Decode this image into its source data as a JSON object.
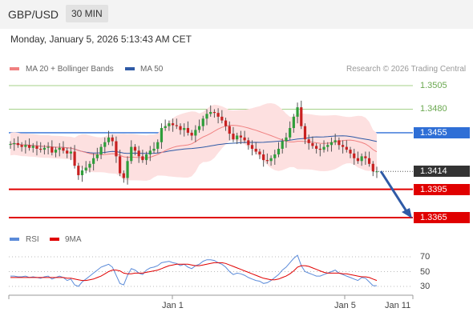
{
  "header": {
    "pair": "GBP/USD",
    "timeframe": "30 MIN"
  },
  "date_text": "Monday, January 5, 2026 5:13:43 AM CET",
  "legend": {
    "ma20": "MA 20 + Bollinger Bands",
    "ma50": "MA 50",
    "credit": "Research © 2026 Trading Central",
    "rsi": "RSI",
    "ma9": "9MA"
  },
  "colors": {
    "ma20": "#f08080",
    "ma50": "#2f5aa6",
    "band": "#fde0e0",
    "green": "#6aa84f",
    "red": "#e00000",
    "blue": "#2f6fd6",
    "rsi": "#5b8bd9"
  },
  "price_levels": [
    {
      "value": "1.3505",
      "kind": "resistance-green"
    },
    {
      "value": "1.3480",
      "kind": "resistance-green"
    },
    {
      "value": "1.3455",
      "kind": "pivot-blue"
    },
    {
      "value": "1.3414",
      "kind": "last-price"
    },
    {
      "value": "1.3395",
      "kind": "support-red"
    },
    {
      "value": "1.3365",
      "kind": "support-red"
    }
  ],
  "rsi_levels": [
    "70",
    "50",
    "30"
  ],
  "x_labels": [
    "Jan 1",
    "Jan 5",
    "Jan 11"
  ],
  "chart_data": {
    "type": "candlestick",
    "price_ylim": [
      1.335,
      1.3515
    ],
    "close": [
      1.3443,
      1.3444,
      1.3442,
      1.344,
      1.3442,
      1.3439,
      1.3441,
      1.3438,
      1.3437,
      1.3439,
      1.344,
      1.3434,
      1.3437,
      1.3439,
      1.3436,
      1.3433,
      1.3435,
      1.342,
      1.341,
      1.3415,
      1.3418,
      1.3422,
      1.3428,
      1.3432,
      1.344,
      1.3445,
      1.345,
      1.3446,
      1.343,
      1.3412,
      1.3407,
      1.3425,
      1.344,
      1.3436,
      1.343,
      1.3426,
      1.3432,
      1.3436,
      1.3438,
      1.3445,
      1.346,
      1.3462,
      1.3465,
      1.3463,
      1.3462,
      1.3458,
      1.346,
      1.3455,
      1.3452,
      1.3458,
      1.3462,
      1.347,
      1.3475,
      1.3477,
      1.3476,
      1.3472,
      1.3468,
      1.3462,
      1.3454,
      1.3448,
      1.3452,
      1.345,
      1.3447,
      1.3442,
      1.3438,
      1.3435,
      1.3432,
      1.3426,
      1.3425,
      1.3428,
      1.3432,
      1.3438,
      1.3446,
      1.345,
      1.346,
      1.3472,
      1.3482,
      1.3462,
      1.3448,
      1.3444,
      1.3441,
      1.3438,
      1.3437,
      1.344,
      1.3442,
      1.3445,
      1.3447,
      1.3442,
      1.344,
      1.3437,
      1.3433,
      1.3428,
      1.3425,
      1.343,
      1.3428,
      1.3422,
      1.3414,
      1.3414
    ],
    "rsi_ylim": [
      20,
      80
    ],
    "rsi": [
      44,
      44,
      43,
      43,
      44,
      42,
      43,
      42,
      41,
      43,
      44,
      40,
      42,
      44,
      42,
      38,
      40,
      32,
      30,
      36,
      40,
      44,
      48,
      52,
      56,
      58,
      60,
      56,
      45,
      34,
      32,
      45,
      54,
      52,
      48,
      46,
      52,
      55,
      56,
      58,
      62,
      63,
      64,
      62,
      61,
      58,
      60,
      56,
      54,
      58,
      60,
      64,
      66,
      66,
      65,
      62,
      60,
      56,
      50,
      46,
      48,
      47,
      45,
      42,
      40,
      38,
      37,
      34,
      35,
      38,
      42,
      46,
      52,
      56,
      62,
      68,
      72,
      58,
      50,
      48,
      46,
      44,
      44,
      46,
      48,
      50,
      52,
      48,
      46,
      44,
      42,
      40,
      38,
      42,
      41,
      36,
      31,
      31
    ],
    "rsi_ma": [
      42,
      42,
      42,
      42,
      42,
      42,
      42,
      42,
      42,
      42,
      42,
      42,
      42,
      42,
      42,
      41,
      41,
      40,
      39,
      38,
      38,
      39,
      40,
      42,
      44,
      47,
      50,
      52,
      52,
      51,
      48,
      47,
      47,
      48,
      48,
      48,
      49,
      50,
      51,
      52,
      54,
      56,
      58,
      59,
      60,
      60,
      60,
      60,
      59,
      58,
      58,
      59,
      60,
      61,
      62,
      62,
      62,
      61,
      59,
      57,
      55,
      53,
      51,
      49,
      47,
      45,
      43,
      41,
      40,
      39,
      39,
      40,
      42,
      44,
      47,
      51,
      56,
      58,
      58,
      57,
      55,
      53,
      51,
      49,
      48,
      48,
      48,
      48,
      47,
      47,
      46,
      45,
      44,
      43,
      43,
      42,
      40,
      38
    ]
  }
}
